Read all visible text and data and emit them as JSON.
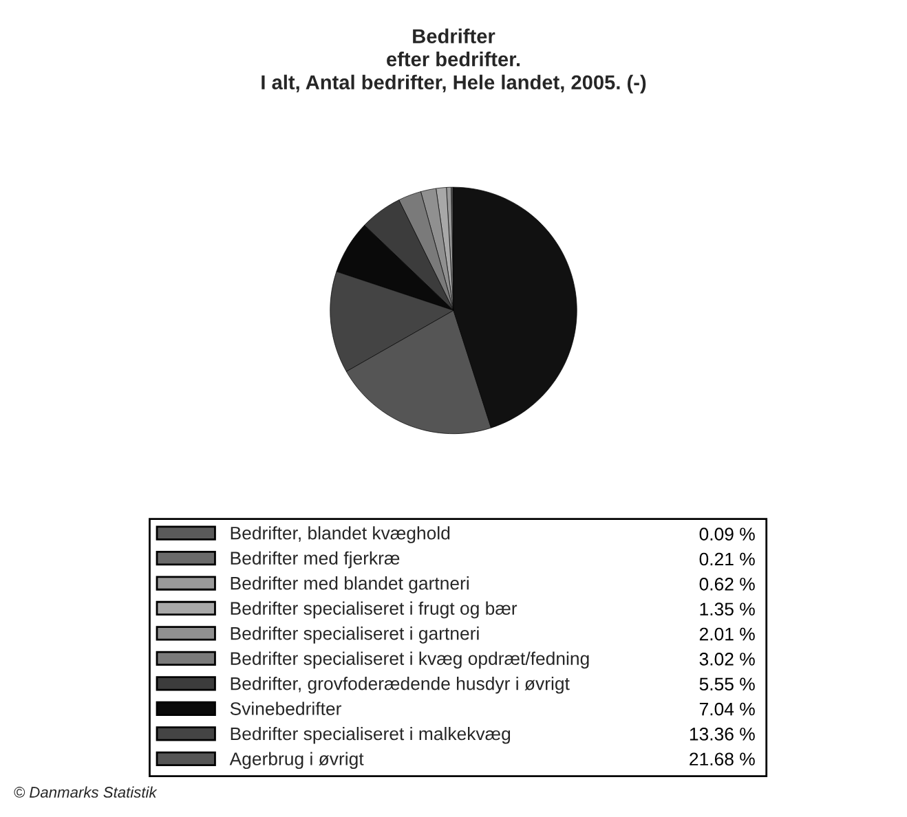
{
  "chart_data": {
    "type": "pie",
    "title": "Bedrifter\nefter bedrifter.\nI alt, Antal bedrifter, Hele landet, 2005. (-)",
    "categories": [
      "Bedrifter, blandet kvæghold",
      "Bedrifter med fjerkræ",
      "Bedrifter med blandet gartneri",
      "Bedrifter specialiseret i frugt og bær",
      "Bedrifter specialiseret i gartneri",
      "Bedrifter specialiseret i kvæg opdræt/fedning",
      "Bedrifter, grovfoderædende husdyr i øvrigt",
      "Svinebedrifter",
      "Bedrifter specialiseret i malkekvæg",
      "Agerbrug i øvrigt",
      null
    ],
    "values": [
      0.09,
      0.21,
      0.62,
      1.35,
      2.01,
      3.02,
      5.55,
      7.04,
      13.36,
      21.68,
      45.07
    ],
    "value_labels": [
      "0.09 %",
      "0.21 %",
      "0.62 %",
      "1.35 %",
      "2.01 %",
      "3.02 %",
      "5.55 %",
      "7.04 %",
      "13.36 %",
      "21.68 %",
      null
    ],
    "colors": [
      "#5a5a5a",
      "#6a6a6a",
      "#9a9a9a",
      "#a8a8a8",
      "#909090",
      "#7a7a7a",
      "#3c3c3c",
      "#0a0a0a",
      "#444444",
      "#555555",
      "#111111"
    ],
    "legend": "bottom",
    "annotations": [
      "© Danmarks Statistik"
    ]
  }
}
